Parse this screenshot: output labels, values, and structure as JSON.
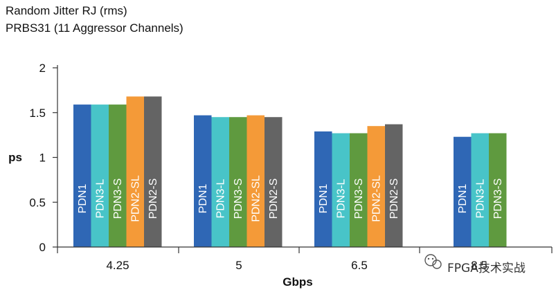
{
  "chart_data": {
    "type": "bar",
    "title": "Random Jitter RJ (rms)",
    "subtitle": "PRBS31 (11 Aggressor Channels)",
    "xlabel": "Gbps",
    "ylabel": "ps",
    "ylim": [
      0,
      2
    ],
    "yticks": [
      "0",
      "0.5",
      "1",
      "1.5",
      "2"
    ],
    "grid": false,
    "groups": [
      {
        "category": "4.25",
        "bars": [
          {
            "series": "PDN1",
            "value": 1.59
          },
          {
            "series": "PDN3-L",
            "value": 1.59
          },
          {
            "series": "PDN3-S",
            "value": 1.59
          },
          {
            "series": "PDN2-SL",
            "value": 1.68
          },
          {
            "series": "PDN2-S",
            "value": 1.68
          }
        ]
      },
      {
        "category": "5",
        "bars": [
          {
            "series": "PDN1",
            "value": 1.47
          },
          {
            "series": "PDN3-L",
            "value": 1.45
          },
          {
            "series": "PDN3-S",
            "value": 1.45
          },
          {
            "series": "PDN2-SL",
            "value": 1.47
          },
          {
            "series": "PDN2-S",
            "value": 1.45
          }
        ]
      },
      {
        "category": "6.5",
        "bars": [
          {
            "series": "PDN1",
            "value": 1.29
          },
          {
            "series": "PDN3-L",
            "value": 1.27
          },
          {
            "series": "PDN3-S",
            "value": 1.27
          },
          {
            "series": "PDN2-SL",
            "value": 1.35
          },
          {
            "series": "PDN2-S",
            "value": 1.37
          }
        ]
      },
      {
        "category": "8.5",
        "bars": [
          {
            "series": "PDN1",
            "value": 1.23
          },
          {
            "series": "PDN3-L",
            "value": 1.27
          },
          {
            "series": "PDN3-S",
            "value": 1.27
          }
        ]
      }
    ],
    "colors": {
      "PDN1": "#2f67b5",
      "PDN3-L": "#48c4c8",
      "PDN3-S": "#5f9a3f",
      "PDN2-SL": "#f49a38",
      "PDN2-S": "#646464"
    }
  },
  "watermark": {
    "text": "FPGA技术实战"
  }
}
